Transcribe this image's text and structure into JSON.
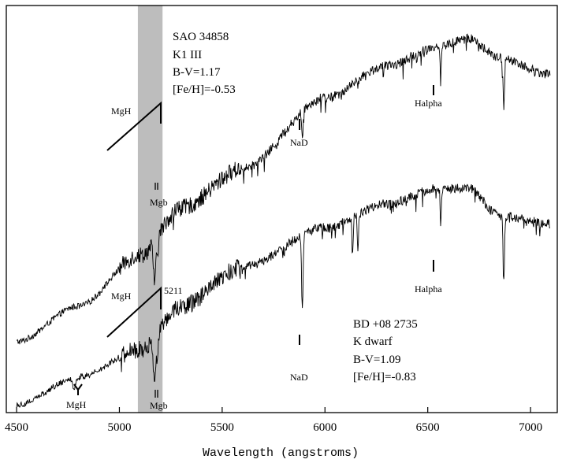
{
  "chart_data": {
    "type": "line",
    "title": "",
    "xlabel": "Wavelength (angstroms)",
    "ylabel": "",
    "xlim": [
      4450,
      7130
    ],
    "ylim": [
      0,
      1
    ],
    "x_ticks": [
      4500,
      5000,
      5500,
      6000,
      6500,
      7000
    ],
    "x_tick_labels": [
      "4500",
      "5000",
      "5500",
      "6000",
      "6500",
      "7000"
    ],
    "y_ticks_labeled": false,
    "grid": false,
    "shaded_band": {
      "x_range": [
        5090,
        5210
      ],
      "color": "#bdbdbd"
    },
    "series": [
      {
        "id": "top",
        "start_x": 4500,
        "end_x": 7095,
        "continuum": [
          [
            4500,
            0.18
          ],
          [
            4800,
            0.27
          ],
          [
            5100,
            0.4
          ],
          [
            5300,
            0.52
          ],
          [
            5600,
            0.62
          ],
          [
            6000,
            0.8
          ],
          [
            6300,
            0.88
          ],
          [
            6550,
            0.93
          ],
          [
            6700,
            0.95
          ],
          [
            6850,
            0.9
          ],
          [
            7095,
            0.86
          ]
        ],
        "features": [
          {
            "x": 5170,
            "depth": 0.09,
            "width": 8
          },
          {
            "x": 5185,
            "depth": 0.06,
            "width": 6
          },
          {
            "x": 5890,
            "depth": 0.07,
            "width": 5
          },
          {
            "x": 6563,
            "depth": 0.08,
            "width": 4
          },
          {
            "x": 6870,
            "depth": 0.12,
            "width": 5
          }
        ]
      },
      {
        "id": "bottom",
        "start_x": 4500,
        "end_x": 7095,
        "continuum": [
          [
            4500,
            0.02
          ],
          [
            4800,
            0.09
          ],
          [
            5100,
            0.16
          ],
          [
            5300,
            0.27
          ],
          [
            5600,
            0.37
          ],
          [
            6000,
            0.47
          ],
          [
            6300,
            0.53
          ],
          [
            6550,
            0.57
          ],
          [
            6700,
            0.57
          ],
          [
            6850,
            0.5
          ],
          [
            7095,
            0.48
          ]
        ],
        "features": [
          {
            "x": 4780,
            "depth": 0.03,
            "width": 10
          },
          {
            "x": 5170,
            "depth": 0.11,
            "width": 8
          },
          {
            "x": 5185,
            "depth": 0.08,
            "width": 6
          },
          {
            "x": 5890,
            "depth": 0.19,
            "width": 5
          },
          {
            "x": 6135,
            "depth": 0.09,
            "width": 4
          },
          {
            "x": 6160,
            "depth": 0.09,
            "width": 4
          },
          {
            "x": 6563,
            "depth": 0.1,
            "width": 4
          },
          {
            "x": 6870,
            "depth": 0.16,
            "width": 5
          }
        ]
      }
    ],
    "star_labels": [
      {
        "lines": [
          "SAO 34858",
          "K1 III",
          "B-V=1.17",
          "[Fe/H]=-0.53"
        ]
      },
      {
        "lines": [
          "BD +08 2735",
          "K dwarf",
          "B-V=1.09",
          "[Fe/H]=-0.83"
        ]
      }
    ],
    "annotations": [
      {
        "text": "MgH",
        "series": "top",
        "type": "wedge"
      },
      {
        "text": "Mgb",
        "series": "top",
        "type": "line-marker",
        "x": 5175
      },
      {
        "text": "NaD",
        "series": "top",
        "type": "line-marker",
        "x": 5890
      },
      {
        "text": "Halpha",
        "series": "top",
        "type": "line-marker",
        "x": 6563
      },
      {
        "text": "MgH",
        "series": "bottom",
        "type": "wedge"
      },
      {
        "text": "5211",
        "series": "bottom",
        "type": "wedge-end-label",
        "x": 5211
      },
      {
        "text": "Mgb",
        "series": "bottom",
        "type": "line-marker",
        "x": 5175
      },
      {
        "text": "NaD",
        "series": "bottom",
        "type": "line-marker",
        "x": 5890
      },
      {
        "text": "Halpha",
        "series": "bottom",
        "type": "line-marker",
        "x": 6563
      },
      {
        "text": "MgH",
        "series": "bottom",
        "type": "y-marker",
        "x": 4780
      }
    ]
  }
}
